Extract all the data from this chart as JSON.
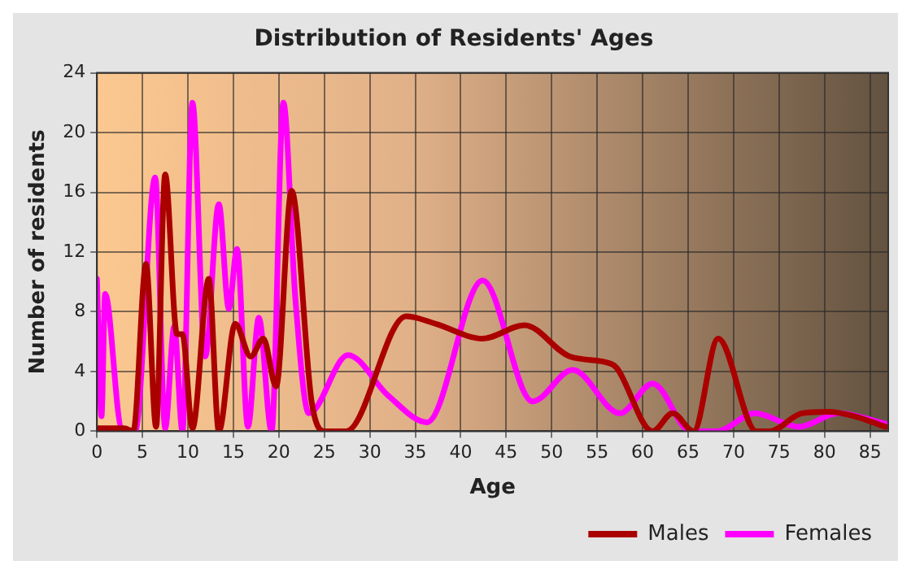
{
  "chart_data": {
    "type": "line",
    "title": "Distribution of Residents' Ages",
    "xlabel": "Age",
    "ylabel": "Number of residents",
    "xlim": [
      0,
      87
    ],
    "xticks": [
      0,
      5,
      10,
      15,
      20,
      25,
      30,
      35,
      40,
      45,
      50,
      55,
      60,
      65,
      70,
      75,
      80,
      85
    ],
    "ylim": [
      0,
      24
    ],
    "yticks": [
      0,
      4,
      8,
      12,
      16,
      20,
      24
    ],
    "grid": true,
    "legend": "bottom right",
    "marker": "none",
    "line_style": "solid",
    "series": [
      {
        "name": "Males",
        "color": "#aa0000",
        "x": [
          0,
          1,
          2,
          3,
          4,
          5.4,
          6.5,
          7.5,
          8.8,
          9.4,
          10.5,
          12.3,
          13.4,
          15.2,
          16.9,
          18.3,
          19.7,
          21.4,
          23.6,
          25,
          27.4,
          34,
          37.2,
          42.4,
          47,
          52,
          56.6,
          57.2,
          61.1,
          63.3,
          65.6,
          68.3,
          72.5,
          74,
          77.5,
          80.4,
          83.3,
          86.7
        ],
        "values": [
          0.2,
          0.2,
          0.2,
          0.2,
          0,
          11.2,
          0.3,
          17.2,
          6.5,
          6.5,
          0.2,
          10.2,
          0,
          7.2,
          5,
          6.2,
          3,
          16.1,
          2,
          0,
          0,
          7.7,
          7.2,
          6.2,
          7.1,
          5,
          4.5,
          4.2,
          0,
          1.2,
          0,
          6.2,
          0,
          0,
          1.2,
          1.3,
          1,
          0.3
        ]
      },
      {
        "name": "Females",
        "color": "#ff00ff",
        "x": [
          0,
          0.5,
          0.9,
          2.7,
          4.2,
          6.4,
          7.5,
          8.5,
          9.4,
          10.5,
          11.9,
          13.4,
          14.5,
          15.4,
          16.6,
          17.8,
          19.2,
          20.5,
          21.8,
          23.3,
          27.6,
          32,
          36.3,
          42.4,
          47.9,
          52.3,
          57.5,
          61.1,
          65.3,
          68.2,
          72.3,
          77.2,
          81.5,
          86.7
        ],
        "values": [
          10.2,
          1,
          9.2,
          0.2,
          0,
          17,
          0.2,
          7,
          0,
          22,
          5,
          15.2,
          8.2,
          12.2,
          0.3,
          7.6,
          0,
          22,
          9,
          1.2,
          5.1,
          2.4,
          0.6,
          10.1,
          2,
          4.1,
          1.2,
          3.2,
          0,
          0,
          1.2,
          0.3,
          1.2,
          0.5
        ]
      }
    ]
  }
}
